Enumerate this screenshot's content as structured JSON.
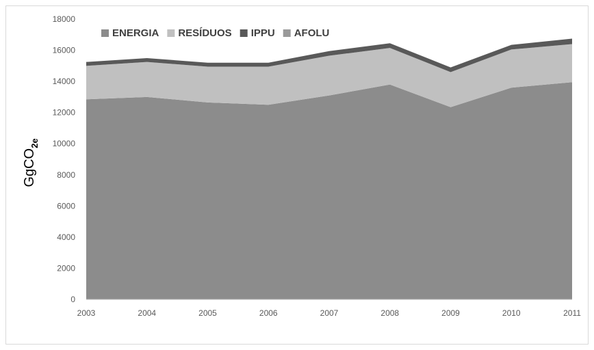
{
  "chart_data": {
    "type": "area",
    "stacked": true,
    "title": "",
    "xlabel": "",
    "ylabel": "GgCO",
    "ylabel_subscript": "2e",
    "ylim": [
      0,
      18000
    ],
    "yticks": [
      0,
      2000,
      4000,
      6000,
      8000,
      10000,
      12000,
      14000,
      16000,
      18000
    ],
    "grid": false,
    "legend_position": "top-left",
    "x": [
      "2003",
      "2004",
      "2005",
      "2006",
      "2007",
      "2008",
      "2009",
      "2010",
      "2011"
    ],
    "series": [
      {
        "name": "ENERGIA",
        "color": "#8c8c8c",
        "values": [
          12850,
          13000,
          12650,
          12500,
          13100,
          13800,
          12350,
          13600,
          13950
        ]
      },
      {
        "name": "RESÍDUOS",
        "color": "#c0c0c0",
        "values": [
          2150,
          2250,
          2300,
          2450,
          2550,
          2350,
          2250,
          2450,
          2450
        ]
      },
      {
        "name": "IPPU",
        "color": "#595959",
        "values": [
          250,
          250,
          250,
          250,
          300,
          300,
          300,
          300,
          350
        ]
      },
      {
        "name": "AFOLU",
        "color": "#9a9a9a",
        "values": [
          0,
          0,
          0,
          0,
          0,
          0,
          0,
          0,
          0
        ]
      }
    ]
  }
}
